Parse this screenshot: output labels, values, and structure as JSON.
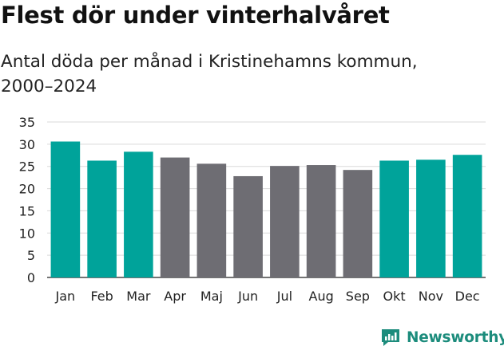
{
  "title": "Flest dör under vinterhalvåret",
  "subtitle": "Antal döda per månad i Kristinehamns kommun, 2000–2024",
  "brand": "Newsworthy",
  "colors": {
    "highlight": "#00a39a",
    "muted": "#6e6d73",
    "brand": "#1c8c7c",
    "grid": "#d9d9d9"
  },
  "chart_data": {
    "type": "bar",
    "title": "Flest dör under vinterhalvåret",
    "subtitle": "Antal döda per månad i Kristinehamns kommun, 2000–2024",
    "xlabel": "",
    "ylabel": "",
    "ylim": [
      0,
      35
    ],
    "yticks": [
      0,
      5,
      10,
      15,
      20,
      25,
      30,
      35
    ],
    "grid": true,
    "categories": [
      "Jan",
      "Feb",
      "Mar",
      "Apr",
      "Maj",
      "Jun",
      "Jul",
      "Aug",
      "Sep",
      "Okt",
      "Nov",
      "Dec"
    ],
    "values": [
      30.6,
      26.3,
      28.3,
      27.0,
      25.6,
      22.8,
      25.1,
      25.3,
      24.2,
      26.3,
      26.5,
      27.6
    ],
    "highlighted": [
      true,
      true,
      true,
      false,
      false,
      false,
      false,
      false,
      false,
      true,
      true,
      true
    ]
  }
}
